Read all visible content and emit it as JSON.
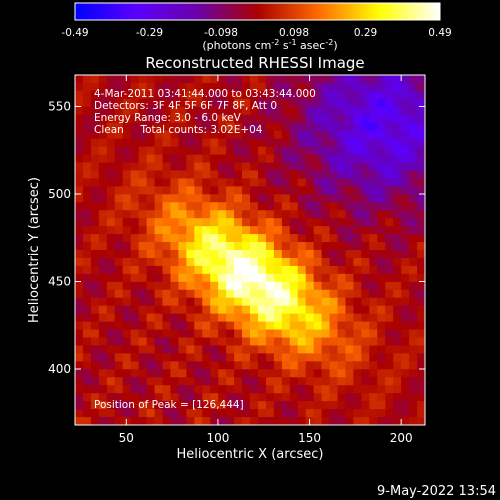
{
  "chart_data": {
    "type": "heatmap",
    "title": "Reconstructed RHESSI Image",
    "xlabel": "Heliocentric X (arcsec)",
    "ylabel": "Heliocentric Y (arcsec)",
    "xlim": [
      22,
      213
    ],
    "ylim": [
      368,
      568
    ],
    "x_ticks": [
      50,
      100,
      150,
      200
    ],
    "y_ticks": [
      400,
      450,
      500,
      550
    ],
    "colorbar": {
      "range": [
        -0.49,
        0.49
      ],
      "tick_values": [
        -0.49,
        -0.29,
        -0.098,
        0.098,
        0.29,
        0.49
      ],
      "tick_labels": [
        "-0.49",
        "-0.29",
        "-0.098",
        "0.098",
        "0.29",
        "0.49"
      ],
      "label_main": "(photons cm",
      "label_exp1": "-2",
      "label_mid": " s",
      "label_exp2": "-1",
      "label_end": " asec",
      "label_exp3": "-2",
      "label_close": ")",
      "colors": [
        "#0000ff",
        "#5a00ff",
        "#6a00aa",
        "#aa0000",
        "#ff6a00",
        "#ffff00",
        "#ffffff"
      ]
    },
    "annotations": [
      " 4-Mar-2011 03:41:44.000 to 03:43:44.000",
      "Detectors: 3F 4F 5F 6F 7F 8F, Att 0",
      "Energy Range: 3.0 - 6.0 keV",
      "Clean     Total counts: 3.02E+04"
    ],
    "peak_label": "Position of Peak = [126,444]",
    "peak": [
      126,
      444
    ],
    "source": {
      "center": [
        118,
        452
      ],
      "peak_value": 0.49,
      "angle_deg": -40,
      "sigma_major": 38,
      "sigma_minor": 17,
      "background": 0.04
    }
  },
  "footer": {
    "timestamp": "9-May-2022 13:54"
  }
}
